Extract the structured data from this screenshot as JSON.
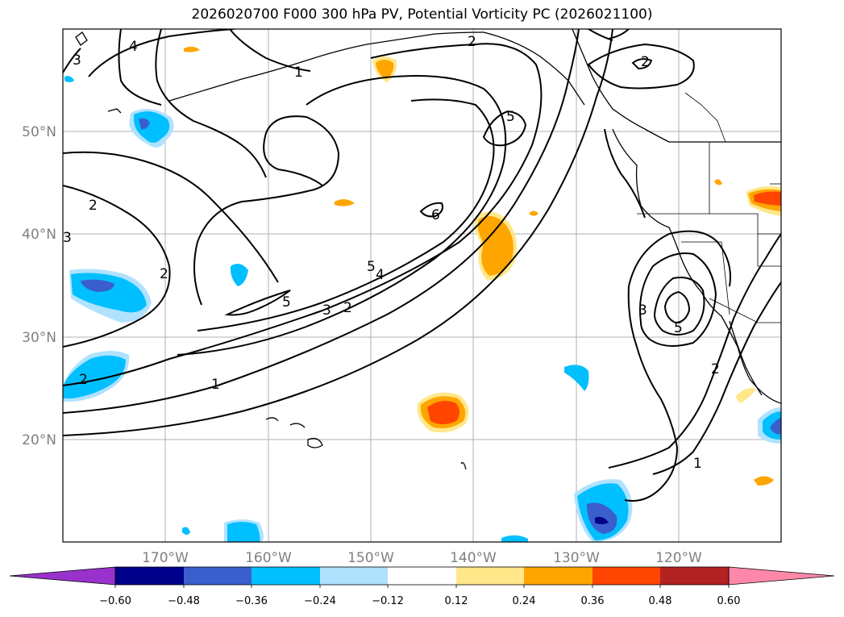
{
  "title": "2026020700 F000 300 hPa PV, Potential Vorticity PC (2026021100)",
  "lat_labels": [
    "50°N",
    "40°N",
    "30°N",
    "20°N"
  ],
  "lon_labels": [
    "170°W",
    "160°W",
    "150°W",
    "140°W",
    "130°W",
    "120°W"
  ],
  "colorbar": {
    "tick_labels": [
      "−0.60",
      "−0.48",
      "−0.36",
      "−0.24",
      "−0.12",
      "0.12",
      "0.24",
      "0.36",
      "0.48",
      "0.60"
    ],
    "colors": [
      "#9932cc",
      "#00008b",
      "#3a5fcd",
      "#00bfff",
      "#b0e2ff",
      "#ffffff",
      "#ffe78a",
      "#ffa500",
      "#ff4500",
      "#b22222",
      "#ff88aa"
    ]
  },
  "contour_labels": [
    "4",
    "3",
    "1",
    "2",
    "2",
    "3",
    "2",
    "5",
    "6",
    "5",
    "4",
    "5",
    "3",
    "2",
    "1",
    "2",
    "3",
    "5",
    "2",
    "1",
    "2"
  ]
}
